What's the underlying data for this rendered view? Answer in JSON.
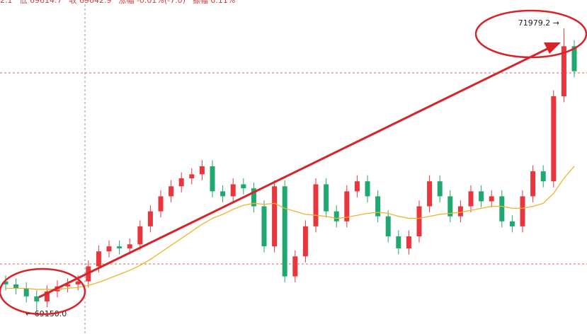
{
  "chart_data": {
    "type": "candlestick",
    "header": [
      "2.1",
      "低 69614.7",
      "收 69642.9",
      "涨幅 -0.01%(-7.0)",
      "振幅 0.11%"
    ],
    "max_label": "71979.2 →",
    "min_label": "← 69150.0",
    "ylim": [
      68924,
      72262
    ],
    "up_color": "#e8363c",
    "down_color": "#1fa971",
    "open": [
      69450,
      69420,
      69380,
      69300,
      69250,
      69350,
      69400,
      69420,
      69450,
      69600,
      69750,
      69800,
      69780,
      69820,
      70000,
      70150,
      70300,
      70400,
      70480,
      70520,
      70600,
      70350,
      70300,
      70420,
      70380,
      70200,
      69800,
      70400,
      69500,
      69700,
      70000,
      70420,
      70150,
      70050,
      70350,
      70450,
      70300,
      70100,
      69900,
      69780,
      69900,
      70200,
      70450,
      70300,
      70100,
      70200,
      70350,
      70250,
      70300,
      70050,
      70000,
      70300,
      70550,
      70450,
      71300,
      71800
    ],
    "high": [
      69510,
      69480,
      69440,
      69360,
      69410,
      69460,
      69480,
      69510,
      69660,
      69810,
      69860,
      69860,
      69880,
      70060,
      70210,
      70360,
      70460,
      70540,
      70580,
      70660,
      70660,
      70410,
      70480,
      70480,
      70440,
      70260,
      70460,
      70460,
      69760,
      70060,
      70480,
      70480,
      70210,
      70410,
      70510,
      70510,
      70360,
      70160,
      69960,
      69960,
      70260,
      70510,
      70510,
      70360,
      70260,
      70410,
      70410,
      70360,
      70360,
      70110,
      70360,
      70610,
      70610,
      71360,
      71979.2,
      71860
    ],
    "low": [
      69360,
      69320,
      69240,
      69150,
      69190,
      69290,
      69340,
      69360,
      69390,
      69540,
      69690,
      69720,
      69720,
      69760,
      69940,
      70090,
      70240,
      70340,
      70420,
      70460,
      70290,
      70240,
      70240,
      70320,
      70140,
      69740,
      69740,
      69440,
      69440,
      69640,
      69940,
      70090,
      69990,
      69990,
      70290,
      70240,
      70040,
      69840,
      69720,
      69720,
      69840,
      70140,
      70240,
      70040,
      70040,
      70140,
      70190,
      70190,
      69990,
      69940,
      69940,
      70240,
      70390,
      70390,
      71240,
      71490
    ],
    "close": [
      69420,
      69380,
      69300,
      69250,
      69350,
      69400,
      69420,
      69450,
      69600,
      69750,
      69800,
      69780,
      69820,
      70000,
      70150,
      70300,
      70400,
      70480,
      70520,
      70600,
      70350,
      70300,
      70420,
      70380,
      70200,
      69800,
      70400,
      69500,
      69700,
      70000,
      70420,
      70150,
      70050,
      70350,
      70450,
      70300,
      70100,
      69900,
      69780,
      69900,
      70200,
      70450,
      70300,
      70100,
      70200,
      70350,
      70250,
      70300,
      70050,
      70000,
      70300,
      70550,
      70450,
      71300,
      71800,
      71550
    ],
    "ma": {
      "color": "#f0b429",
      "values": [
        69380,
        69380,
        69380,
        69370,
        69370,
        69370,
        69380,
        69390,
        69410,
        69440,
        69480,
        69520,
        69560,
        69610,
        69670,
        69740,
        69810,
        69880,
        69950,
        70020,
        70080,
        70120,
        70170,
        70210,
        70230,
        70220,
        70230,
        70180,
        70150,
        70120,
        70110,
        70100,
        70080,
        70090,
        70110,
        70130,
        70140,
        70130,
        70100,
        70080,
        70080,
        70100,
        70120,
        70130,
        70140,
        70160,
        70180,
        70200,
        70200,
        70180,
        70180,
        70200,
        70230,
        70330,
        70480,
        70600
      ]
    }
  }
}
